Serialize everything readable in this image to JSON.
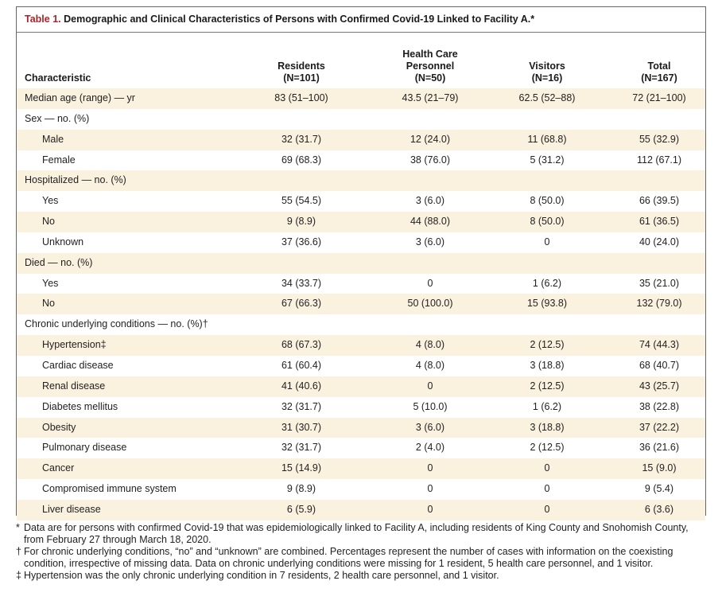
{
  "caption": {
    "label": "Table 1.",
    "title": "Demographic and Clinical Characteristics of Persons with Confirmed Covid-19 Linked to Facility A.*"
  },
  "headers": {
    "characteristic": "Characteristic",
    "residents": [
      "Residents",
      "(N=101)"
    ],
    "hcp": [
      "Health Care",
      "Personnel",
      "(N=50)"
    ],
    "visitors": [
      "Visitors",
      "(N=16)"
    ],
    "total": [
      "Total",
      "(N=167)"
    ]
  },
  "rows": [
    {
      "label": "Median age (range) — yr",
      "indent": false,
      "shade": true,
      "values": [
        "83 (51–100)",
        "43.5 (21–79)",
        "62.5 (52–88)",
        "72 (21–100)"
      ]
    },
    {
      "label": "Sex — no. (%)",
      "indent": false,
      "shade": false,
      "values": [
        "",
        "",
        "",
        ""
      ]
    },
    {
      "label": "Male",
      "indent": true,
      "shade": true,
      "values": [
        "32 (31.7)",
        "12 (24.0)",
        "11 (68.8)",
        "55 (32.9)"
      ]
    },
    {
      "label": "Female",
      "indent": true,
      "shade": false,
      "values": [
        "69 (68.3)",
        "38 (76.0)",
        "5 (31.2)",
        "112 (67.1)"
      ]
    },
    {
      "label": "Hospitalized — no. (%)",
      "indent": false,
      "shade": true,
      "values": [
        "",
        "",
        "",
        ""
      ]
    },
    {
      "label": "Yes",
      "indent": true,
      "shade": false,
      "values": [
        "55 (54.5)",
        "3 (6.0)",
        "8 (50.0)",
        "66 (39.5)"
      ]
    },
    {
      "label": "No",
      "indent": true,
      "shade": true,
      "values": [
        "9 (8.9)",
        "44 (88.0)",
        "8 (50.0)",
        "61 (36.5)"
      ]
    },
    {
      "label": "Unknown",
      "indent": true,
      "shade": false,
      "values": [
        "37 (36.6)",
        "3 (6.0)",
        "0",
        "40 (24.0)"
      ]
    },
    {
      "label": "Died — no. (%)",
      "indent": false,
      "shade": true,
      "values": [
        "",
        "",
        "",
        ""
      ]
    },
    {
      "label": "Yes",
      "indent": true,
      "shade": false,
      "values": [
        "34 (33.7)",
        "0",
        "1 (6.2)",
        "35 (21.0)"
      ]
    },
    {
      "label": "No",
      "indent": true,
      "shade": true,
      "values": [
        "67 (66.3)",
        "50 (100.0)",
        "15 (93.8)",
        "132 (79.0)"
      ]
    },
    {
      "label": "Chronic underlying conditions — no. (%)†",
      "indent": false,
      "shade": false,
      "values": [
        "",
        "",
        "",
        ""
      ]
    },
    {
      "label": "Hypertension‡",
      "indent": true,
      "shade": true,
      "values": [
        "68 (67.3)",
        "4 (8.0)",
        "2 (12.5)",
        "74 (44.3)"
      ]
    },
    {
      "label": "Cardiac disease",
      "indent": true,
      "shade": false,
      "values": [
        "61 (60.4)",
        "4 (8.0)",
        "3 (18.8)",
        "68 (40.7)"
      ]
    },
    {
      "label": "Renal disease",
      "indent": true,
      "shade": true,
      "values": [
        "41 (40.6)",
        "0",
        "2 (12.5)",
        "43 (25.7)"
      ]
    },
    {
      "label": "Diabetes mellitus",
      "indent": true,
      "shade": false,
      "values": [
        "32 (31.7)",
        "5 (10.0)",
        "1 (6.2)",
        "38 (22.8)"
      ]
    },
    {
      "label": "Obesity",
      "indent": true,
      "shade": true,
      "values": [
        "31 (30.7)",
        "3 (6.0)",
        "3 (18.8)",
        "37 (22.2)"
      ]
    },
    {
      "label": "Pulmonary disease",
      "indent": true,
      "shade": false,
      "values": [
        "32 (31.7)",
        "2 (4.0)",
        "2 (12.5)",
        "36 (21.6)"
      ]
    },
    {
      "label": "Cancer",
      "indent": true,
      "shade": true,
      "values": [
        "15 (14.9)",
        "0",
        "0",
        "15 (9.0)"
      ]
    },
    {
      "label": "Compromised immune system",
      "indent": true,
      "shade": false,
      "values": [
        "9 (8.9)",
        "0",
        "0",
        "9 (5.4)"
      ]
    },
    {
      "label": "Liver disease",
      "indent": true,
      "shade": true,
      "values": [
        "6 (5.9)",
        "0",
        "0",
        "6 (3.6)"
      ]
    }
  ],
  "footnotes": [
    {
      "symbol": "*",
      "text": "Data are for persons with confirmed Covid-19 that was epidemiologically linked to Facility A, including residents of King County and Snohomish County, from February 27 through March 18, 2020."
    },
    {
      "symbol": "†",
      "text": "For chronic underlying conditions, “no” and “unknown” are combined. Percentages represent the number of cases with information on the coexisting condition, irrespective of missing data. Data on chronic underlying conditions were missing for 1 resident, 5 health care personnel, and 1 visitor."
    },
    {
      "symbol": "‡",
      "text": "Hypertension was the only chronic underlying condition in 7 residents, 2 health care personnel, and 1 visitor."
    }
  ],
  "colors": {
    "label_red": "#b0202a",
    "row_shade": "#fbf1df",
    "border": "#666666"
  }
}
